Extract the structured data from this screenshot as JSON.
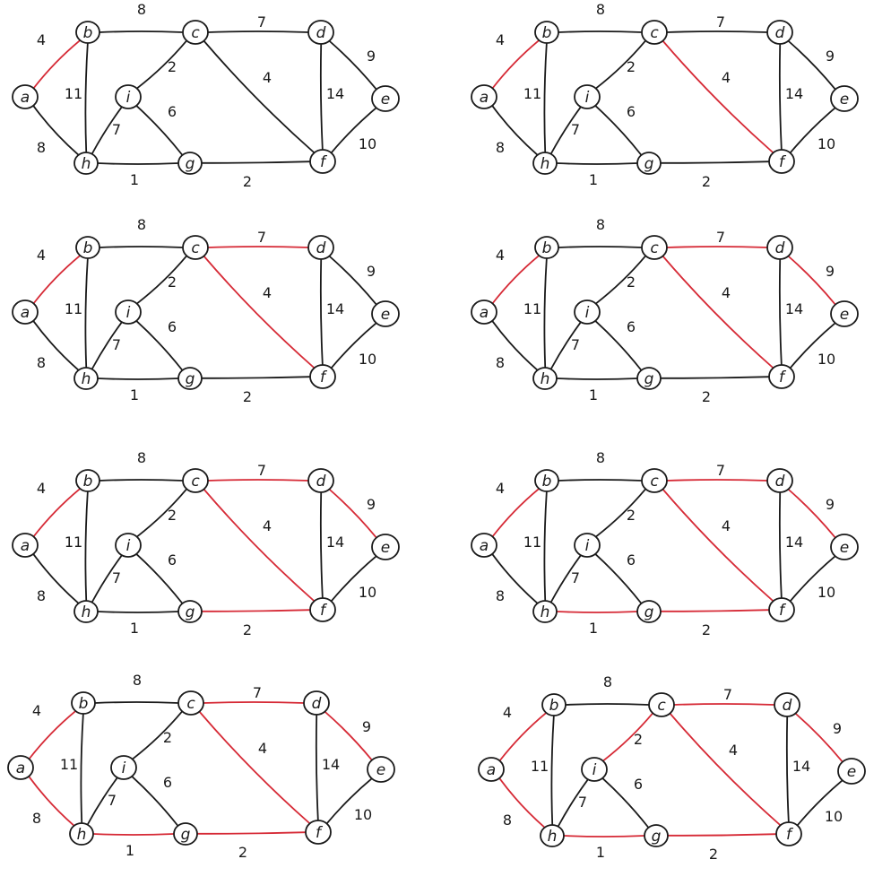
{
  "colors": {
    "background": "#ffffff",
    "ink": "#1a1a1a",
    "highlight": "#d62a36"
  },
  "nodes": [
    "a",
    "b",
    "c",
    "d",
    "e",
    "f",
    "g",
    "h",
    "i"
  ],
  "node_labels": {
    "a": "a",
    "b": "b",
    "c": "c",
    "d": "d",
    "e": "e",
    "f": "f",
    "g": "g",
    "h": "h",
    "i": "i"
  },
  "edges": [
    {
      "id": "a-b",
      "from": "a",
      "to": "b",
      "weight": "4"
    },
    {
      "id": "a-h",
      "from": "a",
      "to": "h",
      "weight": "8"
    },
    {
      "id": "b-c",
      "from": "b",
      "to": "c",
      "weight": "8"
    },
    {
      "id": "b-h",
      "from": "b",
      "to": "h",
      "weight": "11"
    },
    {
      "id": "c-d",
      "from": "c",
      "to": "d",
      "weight": "7"
    },
    {
      "id": "c-i",
      "from": "c",
      "to": "i",
      "weight": "2"
    },
    {
      "id": "c-f",
      "from": "c",
      "to": "f",
      "weight": "4"
    },
    {
      "id": "d-e",
      "from": "d",
      "to": "e",
      "weight": "9"
    },
    {
      "id": "d-f",
      "from": "d",
      "to": "f",
      "weight": "14"
    },
    {
      "id": "e-f",
      "from": "e",
      "to": "f",
      "weight": "10"
    },
    {
      "id": "i-h",
      "from": "i",
      "to": "h",
      "weight": "7"
    },
    {
      "id": "i-g",
      "from": "i",
      "to": "g",
      "weight": "6"
    },
    {
      "id": "h-g",
      "from": "h",
      "to": "g",
      "weight": "1"
    },
    {
      "id": "g-f",
      "from": "g",
      "to": "f",
      "weight": "2"
    }
  ],
  "panels": [
    {
      "id": "panel-1",
      "highlighted_edges": [
        "a-b"
      ]
    },
    {
      "id": "panel-2",
      "highlighted_edges": [
        "a-b",
        "c-f"
      ]
    },
    {
      "id": "panel-3",
      "highlighted_edges": [
        "a-b",
        "c-f",
        "c-d"
      ]
    },
    {
      "id": "panel-4",
      "highlighted_edges": [
        "a-b",
        "c-f",
        "c-d",
        "d-e"
      ]
    },
    {
      "id": "panel-5",
      "highlighted_edges": [
        "a-b",
        "c-f",
        "c-d",
        "d-e",
        "g-f"
      ]
    },
    {
      "id": "panel-6",
      "highlighted_edges": [
        "a-b",
        "c-f",
        "c-d",
        "d-e",
        "g-f",
        "h-g"
      ]
    },
    {
      "id": "panel-7",
      "highlighted_edges": [
        "a-b",
        "c-f",
        "c-d",
        "d-e",
        "g-f",
        "h-g",
        "a-h"
      ]
    },
    {
      "id": "panel-8",
      "highlighted_edges": [
        "a-b",
        "c-f",
        "c-d",
        "d-e",
        "g-f",
        "h-g",
        "a-h",
        "c-i"
      ]
    }
  ]
}
